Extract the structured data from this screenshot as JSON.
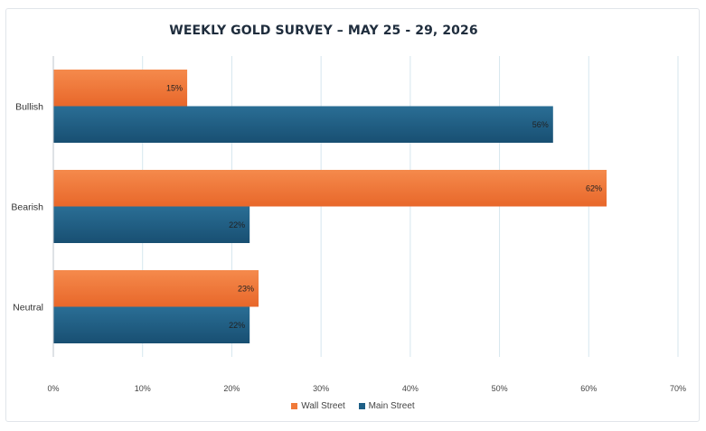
{
  "chart_data": {
    "type": "bar",
    "orientation": "horizontal",
    "title": "WEEKLY GOLD SURVEY – MAY 25 - 29, 2026",
    "categories": [
      "Bullish",
      "Bearish",
      "Neutral"
    ],
    "series": [
      {
        "name": "Wall Street",
        "values": [
          15,
          62,
          23
        ],
        "labels": [
          "15%",
          "62%",
          "23%"
        ],
        "color": "#f07a3a"
      },
      {
        "name": "Main Street",
        "values": [
          56,
          22,
          22
        ],
        "labels": [
          "56%",
          "22%",
          "22%"
        ],
        "color": "#1e5f86"
      }
    ],
    "xlim": [
      0,
      70
    ],
    "ticks": [
      0,
      10,
      20,
      30,
      40,
      50,
      60,
      70
    ],
    "tick_labels": [
      "0%",
      "10%",
      "20%",
      "30%",
      "40%",
      "50%",
      "60%",
      "70%"
    ],
    "grid": true,
    "legend": "bottom"
  }
}
